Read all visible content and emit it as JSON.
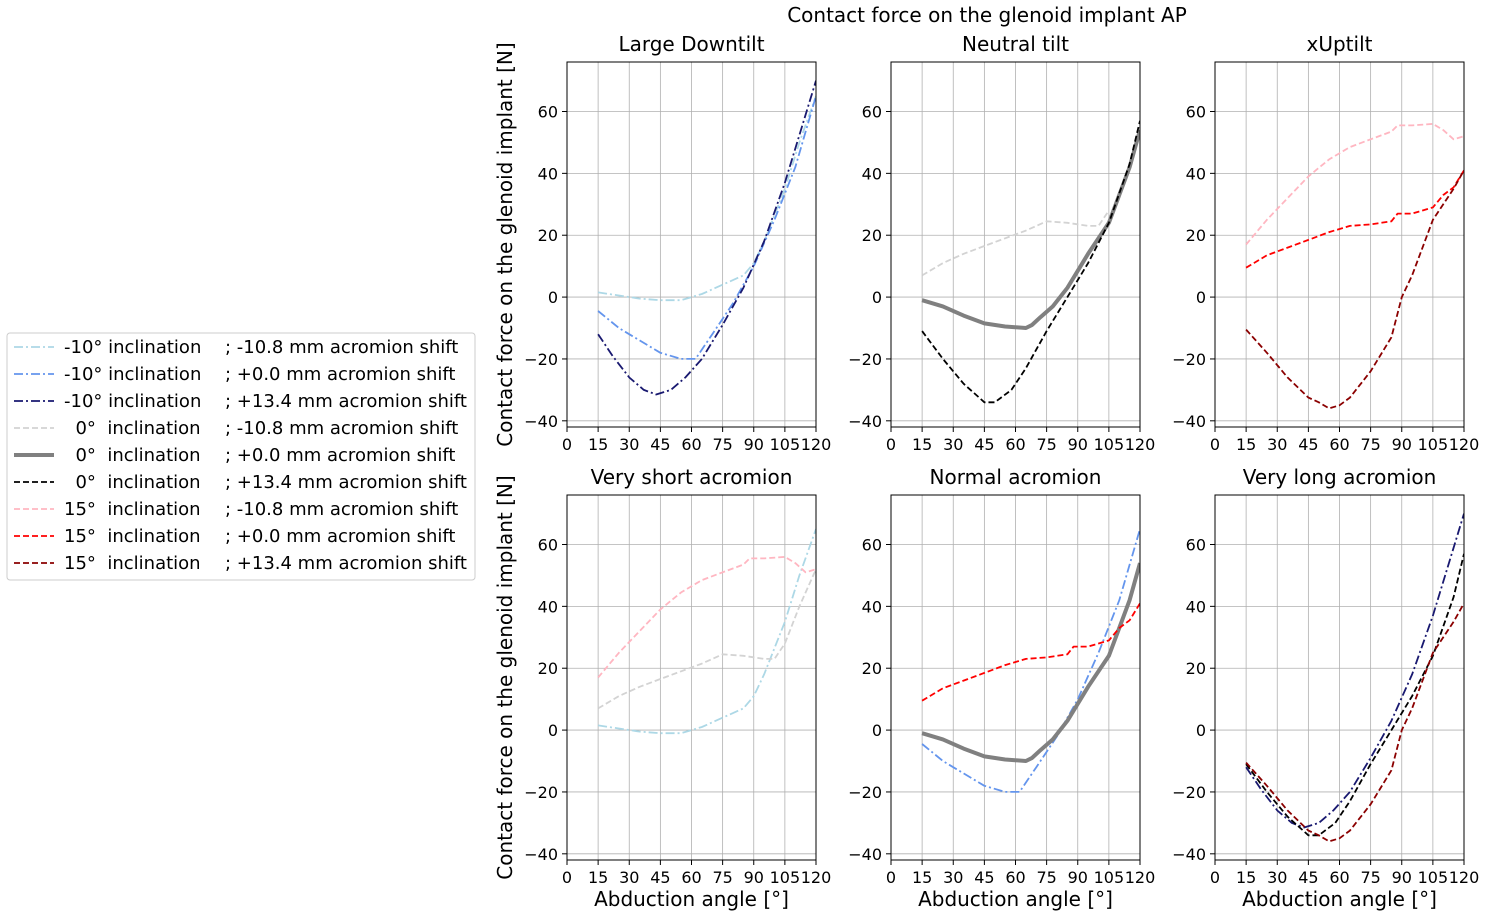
{
  "figure": {
    "suptitle": "Contact force on the glenoid implant AP",
    "ylabel": "Contact force on the glenoid implant [N]",
    "xlabel": "Abduction angle [°]"
  },
  "legend": {
    "placement": "left",
    "entries": [
      {
        "inclination": "-10° inclination",
        "shift": "; -10.8 mm acromion shift"
      },
      {
        "inclination": "-10° inclination",
        "shift": "; +0.0 mm acromion shift"
      },
      {
        "inclination": "-10° inclination",
        "shift": "; +13.4 mm acromion shift"
      },
      {
        "inclination": "  0°  inclination",
        "shift": "; -10.8 mm acromion shift"
      },
      {
        "inclination": "  0°  inclination",
        "shift": "; +0.0 mm acromion shift"
      },
      {
        "inclination": "  0°  inclination",
        "shift": "; +13.4 mm acromion shift"
      },
      {
        "inclination": "15°  inclination",
        "shift": "; -10.8 mm acromion shift"
      },
      {
        "inclination": "15°  inclination",
        "shift": "; +0.0 mm acromion shift"
      },
      {
        "inclination": "15°  inclination",
        "shift": "; +13.4 mm acromion shift"
      }
    ]
  },
  "series_styles": [
    {
      "color": "#add8e6",
      "dash": "dashdot",
      "width": "thin"
    },
    {
      "color": "#6495ed",
      "dash": "dashdot",
      "width": "thin"
    },
    {
      "color": "#191970",
      "dash": "dashdot",
      "width": "thin"
    },
    {
      "color": "#d3d3d3",
      "dash": "dashed",
      "width": "thin"
    },
    {
      "color": "#808080",
      "dash": "solid",
      "width": "thick"
    },
    {
      "color": "#000000",
      "dash": "dashed",
      "width": "thin"
    },
    {
      "color": "#ffb6c1",
      "dash": "dashed",
      "width": "thin"
    },
    {
      "color": "#ff0000",
      "dash": "dashed",
      "width": "thin"
    },
    {
      "color": "#8b0000",
      "dash": "dashed",
      "width": "thin"
    }
  ],
  "chart_data": [
    {
      "type": "line",
      "title": "Large Downtilt",
      "xlim": [
        0,
        120
      ],
      "ylim": [
        -42,
        76
      ],
      "xticks": [
        0,
        15,
        30,
        45,
        60,
        75,
        90,
        105,
        120
      ],
      "yticks": [
        -40,
        -20,
        0,
        20,
        40,
        60
      ],
      "grid": true,
      "series": [
        {
          "style": 0,
          "x": [
            15,
            25,
            35,
            45,
            55,
            65,
            75,
            85,
            90,
            95,
            105,
            112,
            120
          ],
          "y": [
            1.5,
            0.5,
            -0.5,
            -1,
            -1,
            1,
            4,
            7,
            11,
            18,
            35,
            50,
            65
          ]
        },
        {
          "style": 1,
          "x": [
            15,
            25,
            35,
            45,
            55,
            62,
            70,
            80,
            90,
            100,
            110,
            120
          ],
          "y": [
            -4.5,
            -10,
            -14,
            -18,
            -20,
            -20,
            -12,
            -2,
            10,
            25,
            42,
            65
          ]
        },
        {
          "style": 2,
          "x": [
            15,
            22,
            30,
            37,
            43,
            50,
            57,
            65,
            75,
            85,
            95,
            105,
            120
          ],
          "y": [
            -12,
            -19,
            -26,
            -30,
            -31.5,
            -30,
            -26,
            -20,
            -9,
            3,
            18,
            37,
            70
          ]
        }
      ]
    },
    {
      "type": "line",
      "title": "Neutral tilt",
      "xlim": [
        0,
        120
      ],
      "ylim": [
        -42,
        76
      ],
      "xticks": [
        0,
        15,
        30,
        45,
        60,
        75,
        90,
        105,
        120
      ],
      "yticks": [
        -40,
        -20,
        0,
        20,
        40,
        60
      ],
      "grid": true,
      "series": [
        {
          "style": 3,
          "x": [
            15,
            25,
            35,
            45,
            55,
            65,
            75,
            85,
            95,
            100,
            105
          ],
          "y": [
            7,
            11,
            14,
            16.5,
            19,
            21.5,
            24.5,
            24,
            23,
            23,
            28
          ]
        },
        {
          "style": 4,
          "x": [
            15,
            25,
            35,
            45,
            55,
            65,
            68,
            72,
            78,
            85,
            95,
            105,
            115,
            120
          ],
          "y": [
            -1,
            -3,
            -6,
            -8.5,
            -9.5,
            -10,
            -9,
            -6.5,
            -3,
            3,
            14,
            24,
            42,
            54
          ]
        },
        {
          "style": 5,
          "x": [
            15,
            25,
            35,
            45,
            50,
            58,
            65,
            75,
            85,
            95,
            105,
            115,
            120
          ],
          "y": [
            -11,
            -20,
            -28,
            -34,
            -34,
            -30,
            -23,
            -11,
            0,
            11,
            24,
            43,
            57
          ]
        }
      ]
    },
    {
      "type": "line",
      "title": "xUptilt",
      "xlim": [
        0,
        120
      ],
      "ylim": [
        -42,
        76
      ],
      "xticks": [
        0,
        15,
        30,
        45,
        60,
        75,
        90,
        105,
        120
      ],
      "yticks": [
        -40,
        -20,
        0,
        20,
        40,
        60
      ],
      "grid": true,
      "series": [
        {
          "style": 6,
          "x": [
            15,
            25,
            35,
            45,
            55,
            65,
            75,
            85,
            88,
            95,
            105,
            110,
            115,
            120
          ],
          "y": [
            17,
            25,
            32,
            39,
            44.5,
            48.5,
            51,
            53.5,
            55.5,
            55.5,
            56,
            54,
            51,
            52
          ]
        },
        {
          "style": 7,
          "x": [
            15,
            25,
            35,
            45,
            55,
            65,
            75,
            85,
            88,
            95,
            105,
            110,
            115,
            120
          ],
          "y": [
            9.5,
            13.5,
            16,
            18.5,
            21,
            23,
            23.5,
            24.5,
            27,
            27,
            29,
            33,
            35.5,
            41
          ]
        },
        {
          "style": 8,
          "x": [
            15,
            25,
            35,
            45,
            50,
            55,
            60,
            65,
            75,
            85,
            90,
            95,
            105,
            115,
            120
          ],
          "y": [
            -10.5,
            -18,
            -26,
            -32.5,
            -34,
            -36,
            -35,
            -32.5,
            -24,
            -13,
            0,
            7,
            25,
            35,
            41
          ]
        }
      ]
    },
    {
      "type": "line",
      "title": "Very short acromion",
      "xlim": [
        0,
        120
      ],
      "ylim": [
        -42,
        76
      ],
      "xticks": [
        0,
        15,
        30,
        45,
        60,
        75,
        90,
        105,
        120
      ],
      "yticks": [
        -40,
        -20,
        0,
        20,
        40,
        60
      ],
      "grid": true,
      "series": [
        {
          "style": 0,
          "x": [
            15,
            25,
            35,
            45,
            55,
            65,
            75,
            85,
            90,
            95,
            105,
            112,
            120
          ],
          "y": [
            1.5,
            0.5,
            -0.5,
            -1,
            -1,
            1,
            4,
            7,
            11,
            18,
            35,
            50,
            65
          ]
        },
        {
          "style": 3,
          "x": [
            15,
            25,
            35,
            45,
            55,
            65,
            75,
            85,
            95,
            100,
            105,
            112,
            120
          ],
          "y": [
            7,
            11,
            14,
            16.5,
            19,
            21.5,
            24.5,
            24,
            23,
            23,
            28,
            40,
            52
          ]
        },
        {
          "style": 6,
          "x": [
            15,
            25,
            35,
            45,
            55,
            65,
            75,
            85,
            88,
            95,
            105,
            110,
            115,
            120
          ],
          "y": [
            17,
            25,
            32,
            39,
            44.5,
            48.5,
            51,
            53.5,
            55.5,
            55.5,
            56,
            54,
            51,
            52
          ]
        }
      ]
    },
    {
      "type": "line",
      "title": "Normal acromion",
      "xlim": [
        0,
        120
      ],
      "ylim": [
        -42,
        76
      ],
      "xticks": [
        0,
        15,
        30,
        45,
        60,
        75,
        90,
        105,
        120
      ],
      "yticks": [
        -40,
        -20,
        0,
        20,
        40,
        60
      ],
      "grid": true,
      "series": [
        {
          "style": 1,
          "x": [
            15,
            25,
            35,
            45,
            55,
            62,
            70,
            80,
            90,
            100,
            110,
            120
          ],
          "y": [
            -4.5,
            -10,
            -14,
            -18,
            -20,
            -20,
            -12,
            -2,
            10,
            25,
            42,
            65
          ]
        },
        {
          "style": 4,
          "x": [
            15,
            25,
            35,
            45,
            55,
            65,
            68,
            72,
            78,
            85,
            95,
            105,
            115,
            120
          ],
          "y": [
            -1,
            -3,
            -6,
            -8.5,
            -9.5,
            -10,
            -9,
            -6.5,
            -3,
            3,
            14,
            24,
            42,
            54
          ]
        },
        {
          "style": 7,
          "x": [
            15,
            25,
            35,
            45,
            55,
            65,
            75,
            85,
            88,
            95,
            105,
            110,
            115,
            120
          ],
          "y": [
            9.5,
            13.5,
            16,
            18.5,
            21,
            23,
            23.5,
            24.5,
            27,
            27,
            29,
            33,
            35.5,
            41
          ]
        }
      ]
    },
    {
      "type": "line",
      "title": "Very long acromion",
      "xlim": [
        0,
        120
      ],
      "ylim": [
        -42,
        76
      ],
      "xticks": [
        0,
        15,
        30,
        45,
        60,
        75,
        90,
        105,
        120
      ],
      "yticks": [
        -40,
        -20,
        0,
        20,
        40,
        60
      ],
      "grid": true,
      "series": [
        {
          "style": 2,
          "x": [
            15,
            22,
            30,
            37,
            43,
            50,
            57,
            65,
            75,
            85,
            95,
            105,
            120
          ],
          "y": [
            -12,
            -19,
            -26,
            -30,
            -31.5,
            -30,
            -26,
            -20,
            -9,
            3,
            18,
            37,
            70
          ]
        },
        {
          "style": 5,
          "x": [
            15,
            25,
            35,
            45,
            50,
            58,
            65,
            75,
            85,
            95,
            105,
            115,
            120
          ],
          "y": [
            -11,
            -20,
            -28,
            -34,
            -34,
            -30,
            -23,
            -11,
            0,
            11,
            24,
            43,
            57
          ]
        },
        {
          "style": 8,
          "x": [
            15,
            25,
            35,
            45,
            50,
            55,
            60,
            65,
            75,
            85,
            90,
            95,
            105,
            115,
            120
          ],
          "y": [
            -10.5,
            -18,
            -26,
            -32.5,
            -34,
            -36,
            -35,
            -32.5,
            -24,
            -13,
            0,
            7,
            25,
            35,
            41
          ]
        }
      ]
    }
  ]
}
